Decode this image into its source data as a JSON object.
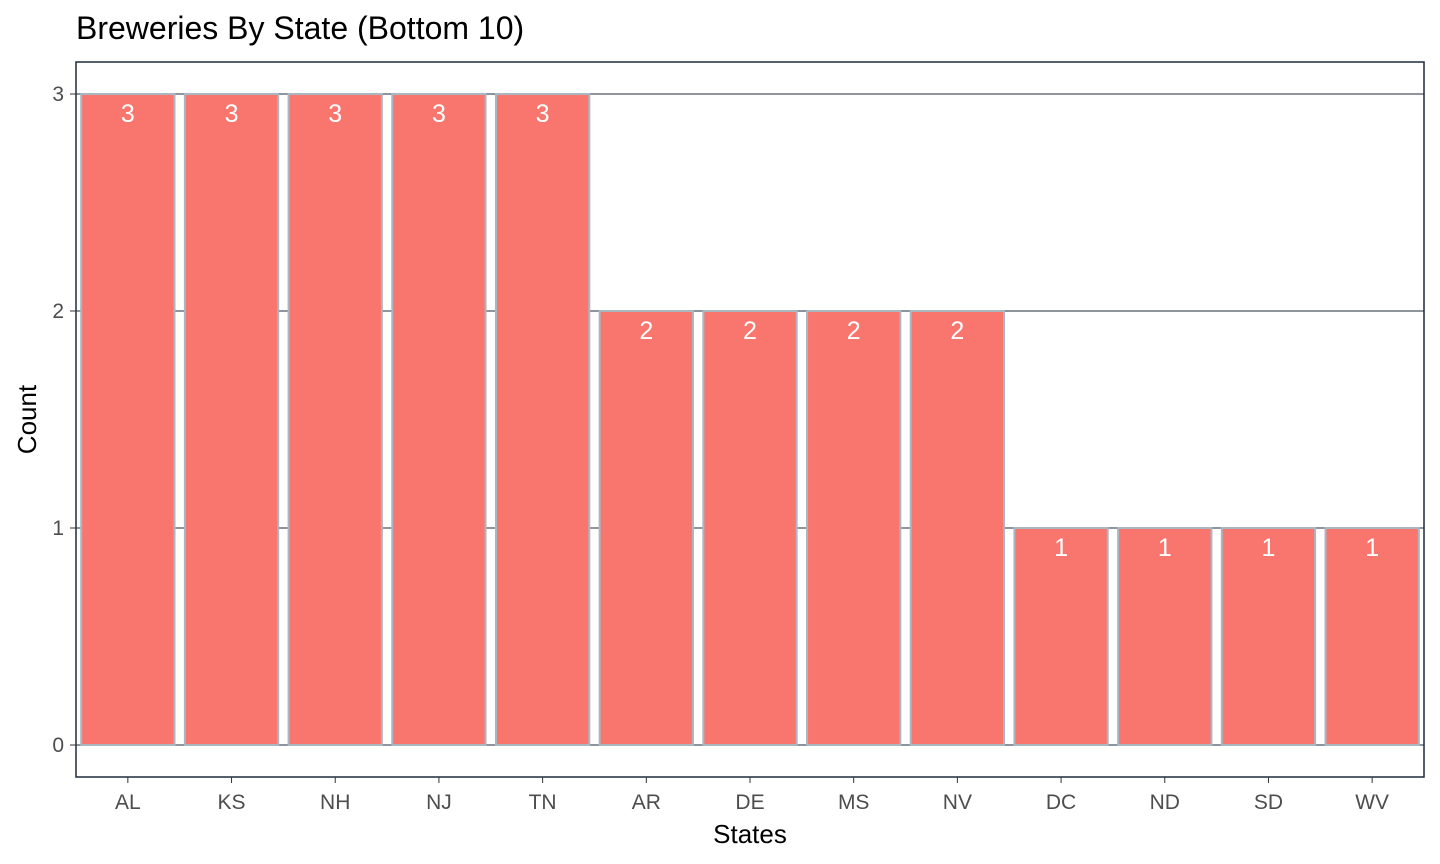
{
  "chart_data": {
    "type": "bar",
    "title": "Breweries By State (Bottom 10)",
    "xlabel": "States",
    "ylabel": "Count",
    "categories": [
      "AL",
      "KS",
      "NH",
      "NJ",
      "TN",
      "AR",
      "DE",
      "MS",
      "NV",
      "DC",
      "ND",
      "SD",
      "WV"
    ],
    "values": [
      3,
      3,
      3,
      3,
      3,
      2,
      2,
      2,
      2,
      1,
      1,
      1,
      1
    ],
    "yticks": [
      0,
      1,
      2,
      3
    ],
    "ylim": [
      -0.15,
      3.15
    ],
    "grid": "horizontal major lines",
    "bar_color": "#F8766D",
    "bar_outline_color": "#A9B7C0",
    "grid_color": "#1C2B3A",
    "panel_border_color": "#1C2B3A",
    "data_label_color": "#FFFFFF",
    "legend": "none"
  }
}
